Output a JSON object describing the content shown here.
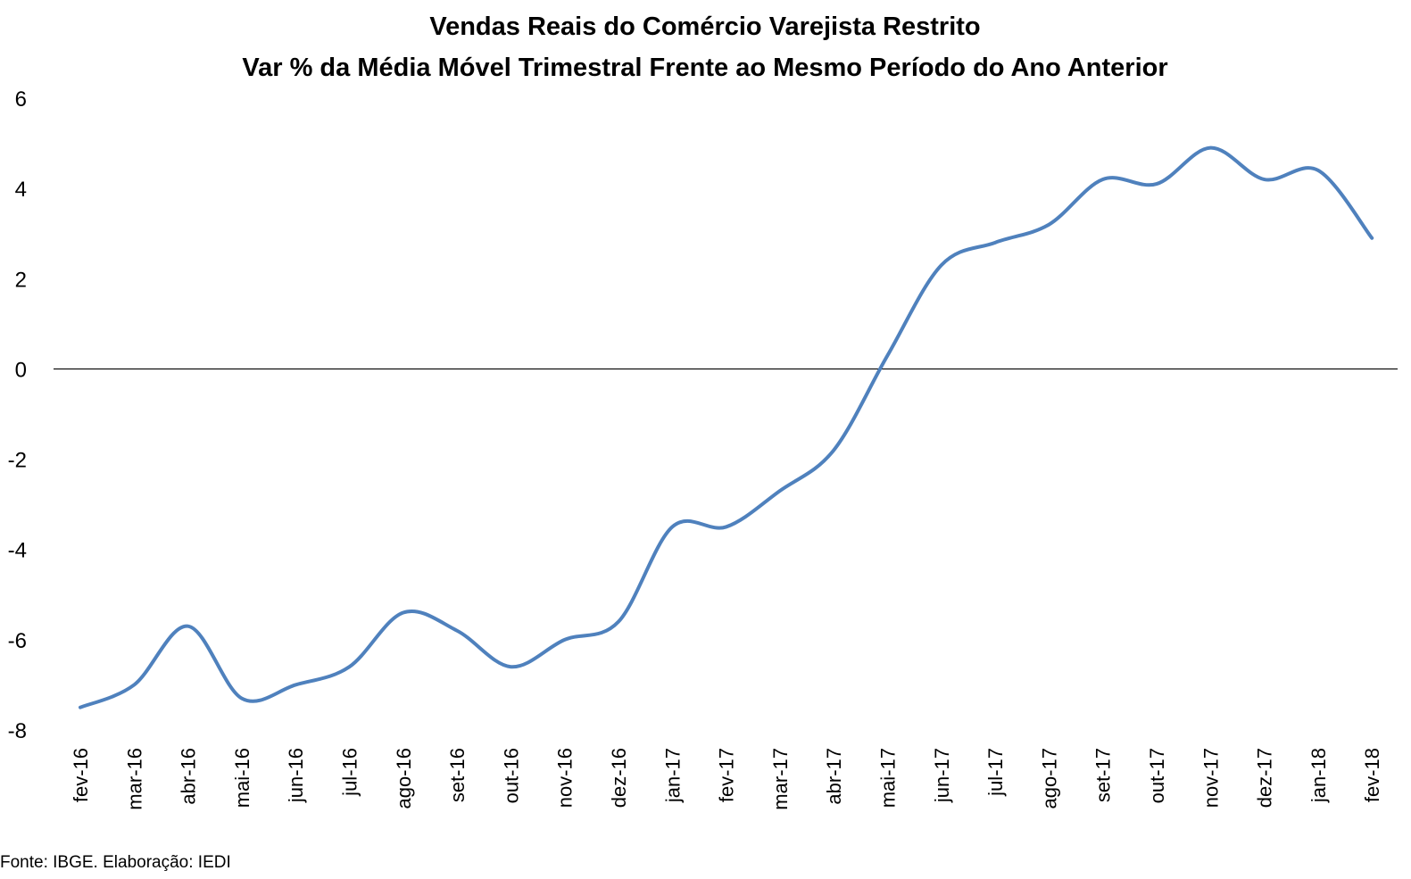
{
  "chart_data": {
    "type": "line",
    "title": "Vendas Reais do Comércio Varejista Restrito",
    "subtitle": "Var % da Média Móvel Trimestral Frente ao Mesmo Período do Ano Anterior",
    "xlabel": "",
    "ylabel": "",
    "ylim": [
      -8,
      6
    ],
    "yticks": [
      6,
      4,
      2,
      0,
      -2,
      -4,
      -6,
      -8
    ],
    "grid": false,
    "legend": "none",
    "line_color": "#4F81BD",
    "categories": [
      "fev-16",
      "mar-16",
      "abr-16",
      "mai-16",
      "jun-16",
      "jul-16",
      "ago-16",
      "set-16",
      "out-16",
      "nov-16",
      "dez-16",
      "jan-17",
      "fev-17",
      "mar-17",
      "abr-17",
      "mai-17",
      "jun-17",
      "jul-17",
      "ago-17",
      "set-17",
      "out-17",
      "nov-17",
      "dez-17",
      "jan-18",
      "fev-18"
    ],
    "series": [
      {
        "values": [
          -7.5,
          -7.0,
          -5.7,
          -7.3,
          -7.0,
          -6.6,
          -5.4,
          -5.8,
          -6.6,
          -6.0,
          -5.6,
          -3.5,
          -3.5,
          -2.7,
          -1.8,
          0.3,
          2.3,
          2.8,
          3.2,
          4.2,
          4.1,
          4.9,
          4.2,
          4.4,
          2.9
        ]
      }
    ],
    "source": "Fonte: IBGE. Elaboração: IEDI"
  }
}
